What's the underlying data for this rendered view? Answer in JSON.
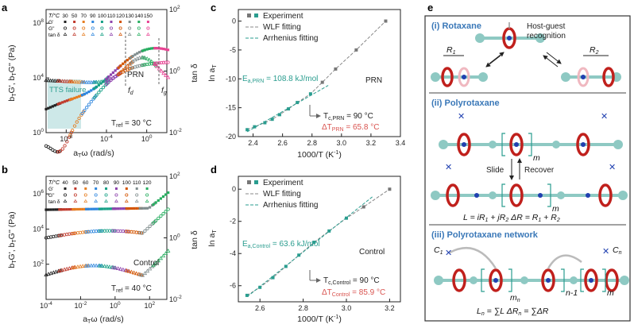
{
  "panels": {
    "a": "a",
    "b": "b",
    "c": "c",
    "d": "d",
    "e": "e"
  },
  "colors": {
    "teal": "#2a9d8f",
    "red": "#d9534f",
    "grey": "#808080",
    "blue": "#3a78b8",
    "frame": "#222222"
  },
  "chart_data": [
    {
      "id": "a",
      "type": "scatter",
      "xlabel": "a_T ω (rad/s)",
      "ylabel_left": "b_T G', b_T G'' (Pa)",
      "ylabel_right": "tan δ",
      "x_scale": "log",
      "y_scale": "log",
      "y2_scale": "log",
      "xlim": [
        1e-10,
        100.0
      ],
      "ylim": [
        1,
        1000000000.0
      ],
      "y2lim": [
        0.01,
        100
      ],
      "xticks": [
        "10-8",
        "10-4",
        "100"
      ],
      "yticks": [
        "100",
        "104",
        "108"
      ],
      "y2ticks": [
        "10-2",
        "100",
        "102"
      ],
      "legend_header": "T/°C",
      "legend_rows": [
        "G'",
        "G''",
        "tan δ"
      ],
      "temperatures": [
        30,
        50,
        70,
        90,
        100,
        110,
        120,
        130,
        140,
        150
      ],
      "annotations": {
        "region": "TTS failure",
        "f_d": "f_d",
        "f_g": "f_g",
        "sample": "PRN",
        "tref": "T_ref = 30 °C"
      }
    },
    {
      "id": "b",
      "type": "scatter",
      "xlabel": "a_T ω (rad/s)",
      "ylabel_left": "b_T G', b_T G'' (Pa)",
      "ylabel_right": "tan δ",
      "x_scale": "log",
      "y_scale": "log",
      "y2_scale": "log",
      "xlim": [
        0.0001,
        1000.0
      ],
      "ylim": [
        1,
        10000000.0
      ],
      "y2lim": [
        0.01,
        100
      ],
      "xticks": [
        "10-4",
        "10-2",
        "100",
        "102"
      ],
      "yticks": [
        "102",
        "104",
        "106"
      ],
      "y2ticks": [
        "10-2",
        "100",
        "102"
      ],
      "legend_header": "T/°C",
      "legend_rows": [
        "G'",
        "G''",
        "tan δ"
      ],
      "temperatures": [
        40,
        50,
        60,
        70,
        80,
        90,
        100,
        110,
        120
      ],
      "annotations": {
        "sample": "Control",
        "tref": "T_ref = 40 °C"
      }
    },
    {
      "id": "c",
      "type": "line",
      "xlabel": "1000/T (K-1)",
      "ylabel": "ln a_T",
      "xlim": [
        2.3,
        3.4
      ],
      "ylim": [
        -20,
        2
      ],
      "xticks": [
        2.4,
        2.6,
        2.8,
        3.0,
        3.2,
        3.4
      ],
      "yticks": [
        -20,
        -15,
        -10,
        -5,
        0
      ],
      "series": [
        {
          "name": "Experiment",
          "x": [
            2.36,
            2.41,
            2.48,
            2.53,
            2.58,
            2.64,
            2.7,
            2.79,
            2.87,
            2.96,
            3.1,
            3.3
          ],
          "y": [
            -18.8,
            -18.3,
            -17.6,
            -17.0,
            -16.2,
            -15.2,
            -14.1,
            -12.6,
            -10.6,
            -8.3,
            -5.0,
            0.0
          ]
        },
        {
          "name": "WLF fitting"
        },
        {
          "name": "Arrhenius fitting"
        }
      ],
      "annotations": {
        "Ea": "E_a,PRN = 108.8 kJ/mol",
        "sample": "PRN",
        "Tc": "T_c,PRN = 90 °C",
        "dT": "ΔT_PRN = 65.8 °C"
      }
    },
    {
      "id": "d",
      "type": "line",
      "xlabel": "1000/T (K-1)",
      "ylabel": "ln a_T",
      "xlim": [
        2.5,
        3.25
      ],
      "ylim": [
        -7,
        0.8
      ],
      "xticks": [
        2.6,
        2.8,
        3.0,
        3.2
      ],
      "yticks": [
        -6,
        -4,
        -2,
        0
      ],
      "series": [
        {
          "name": "Experiment",
          "x": [
            2.54,
            2.6,
            2.66,
            2.72,
            2.78,
            2.85,
            2.92,
            3.0,
            3.08,
            3.2
          ],
          "y": [
            -6.6,
            -6.1,
            -5.5,
            -4.8,
            -4.1,
            -3.3,
            -2.6,
            -1.8,
            -1.1,
            0.0
          ]
        },
        {
          "name": "WLF fitting"
        },
        {
          "name": "Arrhenius fitting"
        }
      ],
      "annotations": {
        "Ea": "E_a,Control = 63.6 kJ/mol",
        "sample": "Control",
        "Tc": "T_c,Control = 90 °C",
        "dT": "ΔT_Control = 85.9 °C"
      }
    }
  ],
  "diagram": {
    "section_i": "(i) Rotaxane",
    "section_ii": "(ii) Polyrotaxane",
    "section_iii": "(iii) Polyrotaxane network",
    "host_guest": "Host-guest",
    "recognition": "recognition",
    "r1": "R1",
    "r2": "R2",
    "slide": "Slide",
    "recover": "Recover",
    "m": "m",
    "n1": "n-1",
    "mn": "mn",
    "c1": "C1",
    "cn": "Cn",
    "eq_ii": "L = iR1 + jR2     ΔR = R1 + R2",
    "eq_iii": "Ln = ∑L        ΔRn = ∑ΔR"
  }
}
